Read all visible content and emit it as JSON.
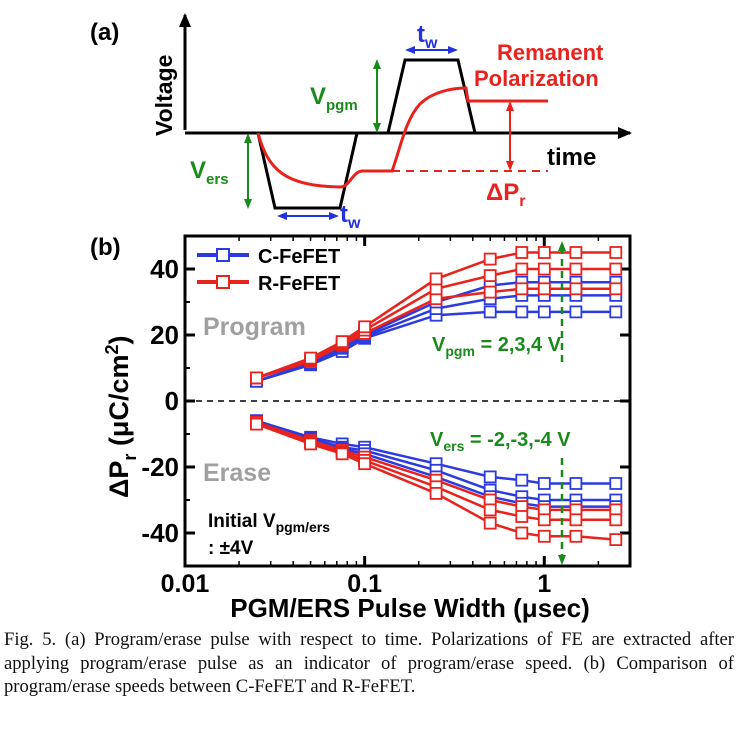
{
  "panel_a": {
    "label": "(a)",
    "ylabel": "Voltage",
    "time_label": "time",
    "vpgm_main": "V",
    "vpgm_sub": "pgm",
    "vers_main": "V",
    "vers_sub": "ers",
    "tw_top_main": "t",
    "tw_top_sub": "w",
    "tw_bot_main": "t",
    "tw_bot_sub": "w",
    "remanent_line1": "Remanent",
    "remanent_line2": "Polarization",
    "dpr_main": "ΔP",
    "dpr_sub": "r",
    "colors": {
      "pulse": "#000000",
      "polarization": "#e8221c",
      "voltage_arrow": "#1a8a1a",
      "width_arrow": "#2233dd"
    }
  },
  "panel_b": {
    "label": "(b)",
    "program_text": "Program",
    "erase_text": "Erase",
    "vpgm_annot": {
      "main": "V",
      "sub": "pgm",
      "rest": " = 2,3,4 V"
    },
    "vers_annot": {
      "main": "V",
      "sub": "ers",
      "rest": " = -2,-3,-4 V"
    },
    "initial_line1_main": "Initial V",
    "initial_line1_sub": "pgm/ers",
    "initial_line2": ": ±4V",
    "ylabel_main": "ΔP",
    "ylabel_sub": "r",
    "ylabel_rest": " (μC/cm",
    "ylabel_sup": "2",
    "ylabel_end": ")",
    "xlabel": "PGM/ERS Pulse Width (μsec)"
  },
  "chart_data": {
    "type": "line",
    "x_scale": "log",
    "xlim": [
      0.01,
      3
    ],
    "ylim": [
      -50,
      50
    ],
    "x_ticks": [
      "0.01",
      "0.1",
      "1"
    ],
    "y_ticks": [
      "-40",
      "-20",
      "0",
      "20",
      "40"
    ],
    "x": [
      0.025,
      0.05,
      0.075,
      0.1,
      0.25,
      0.5,
      0.75,
      1.0,
      1.5,
      2.5
    ],
    "legend_position": "top-left",
    "colors": {
      "C-FeFET": "#2b3be0",
      "R-FeFET": "#e8221c"
    },
    "series": [
      {
        "name": "C-FeFET",
        "group": "program",
        "values": [
          6,
          11,
          15,
          19,
          26,
          27,
          27,
          27,
          27,
          27
        ]
      },
      {
        "name": "C-FeFET",
        "group": "program",
        "values": [
          6,
          11,
          16,
          19.5,
          28,
          31,
          32,
          32,
          32,
          32
        ]
      },
      {
        "name": "C-FeFET",
        "group": "program",
        "values": [
          6,
          11.5,
          16.5,
          20,
          30,
          35,
          36,
          36,
          36,
          36
        ]
      },
      {
        "name": "R-FeFET",
        "group": "program",
        "values": [
          7,
          12,
          17,
          20.5,
          31,
          33,
          34,
          34,
          34,
          34
        ]
      },
      {
        "name": "R-FeFET",
        "group": "program",
        "values": [
          7,
          12.5,
          17.5,
          21.5,
          34,
          38,
          40,
          40,
          40,
          40
        ]
      },
      {
        "name": "R-FeFET",
        "group": "program",
        "values": [
          7,
          13,
          18,
          22.5,
          37,
          43,
          45,
          45,
          45,
          45
        ]
      },
      {
        "name": "C-FeFET",
        "group": "erase",
        "values": [
          -6,
          -11,
          -13,
          -14,
          -19,
          -23,
          -24,
          -25,
          -25,
          -25
        ]
      },
      {
        "name": "C-FeFET",
        "group": "erase",
        "values": [
          -6,
          -11.5,
          -14,
          -15,
          -21,
          -27,
          -29,
          -30,
          -30,
          -30
        ]
      },
      {
        "name": "C-FeFET",
        "group": "erase",
        "values": [
          -6,
          -12,
          -14.5,
          -16,
          -23,
          -29,
          -31,
          -32,
          -32,
          -32
        ]
      },
      {
        "name": "R-FeFET",
        "group": "erase",
        "values": [
          -6.5,
          -12,
          -15,
          -17,
          -24,
          -30,
          -32,
          -33,
          -33,
          -33
        ]
      },
      {
        "name": "R-FeFET",
        "group": "erase",
        "values": [
          -6.5,
          -12.5,
          -15.5,
          -18,
          -26,
          -33,
          -35,
          -36,
          -36,
          -36
        ]
      },
      {
        "name": "R-FeFET",
        "group": "erase",
        "values": [
          -7,
          -13,
          -16,
          -19,
          -28,
          -37,
          -40,
          -41,
          -41,
          -42
        ]
      }
    ]
  },
  "caption": {
    "text": "Fig. 5. (a) Program/erase pulse with respect to time. Polarizations of FE are extracted after applying program/erase pulse as an indicator of program/erase speed. (b) Comparison of program/erase speeds between C-FeFET and R-FeFET."
  }
}
